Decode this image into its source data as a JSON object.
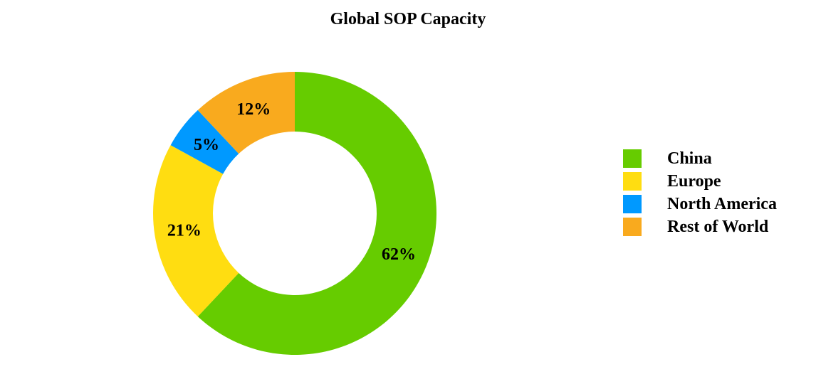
{
  "chart_data": {
    "type": "pie",
    "title": "Global SOP Capacity",
    "categories": [
      "China",
      "Europe",
      "North America",
      "Rest of World"
    ],
    "values": [
      62,
      21,
      5,
      12
    ],
    "labels": [
      "62%",
      "21%",
      "5%",
      "12%"
    ],
    "colors": [
      "#66cc00",
      "#ffdd11",
      "#0099ff",
      "#f9aa1e"
    ],
    "donut": true,
    "legend_position": "right"
  }
}
